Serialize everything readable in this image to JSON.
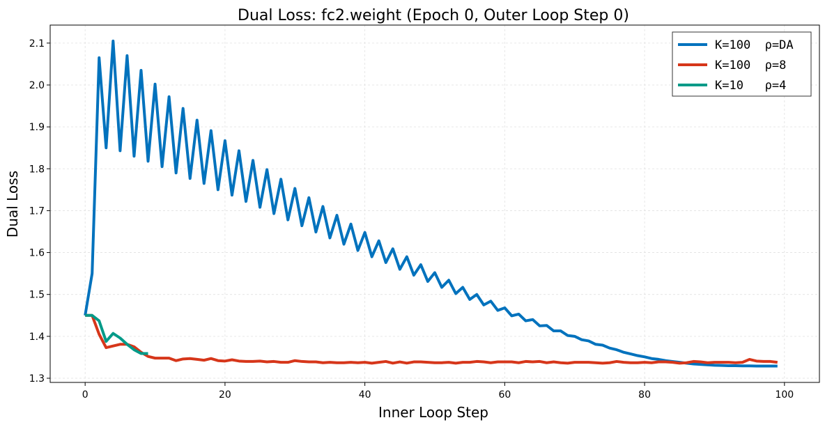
{
  "chart_data": {
    "type": "line",
    "title": "Dual Loss: fc2.weight (Epoch 0, Outer Loop Step 0)",
    "xlabel": "Inner Loop Step",
    "ylabel": "Dual Loss",
    "xlim": [
      -5,
      105
    ],
    "ylim": [
      1.29,
      2.143
    ],
    "xticks": [
      0,
      20,
      40,
      60,
      80,
      100
    ],
    "yticks": [
      1.3,
      1.4,
      1.5,
      1.6,
      1.7,
      1.8,
      1.9,
      2.0,
      2.1
    ],
    "grid": true,
    "legend_position": "top-right",
    "series": [
      {
        "name": "K=100  ρ=DA",
        "color": "#0072bd",
        "values": [
          1.45,
          1.55,
          2.065,
          1.85,
          2.105,
          1.843,
          2.07,
          1.83,
          2.035,
          1.818,
          2.002,
          1.805,
          1.972,
          1.79,
          1.944,
          1.777,
          1.916,
          1.765,
          1.891,
          1.75,
          1.867,
          1.737,
          1.843,
          1.722,
          1.82,
          1.708,
          1.798,
          1.693,
          1.775,
          1.678,
          1.753,
          1.664,
          1.731,
          1.649,
          1.71,
          1.635,
          1.689,
          1.62,
          1.668,
          1.605,
          1.648,
          1.59,
          1.628,
          1.576,
          1.609,
          1.56,
          1.59,
          1.546,
          1.571,
          1.531,
          1.552,
          1.517,
          1.534,
          1.502,
          1.517,
          1.488,
          1.5,
          1.475,
          1.484,
          1.462,
          1.468,
          1.449,
          1.453,
          1.437,
          1.44,
          1.425,
          1.426,
          1.413,
          1.413,
          1.402,
          1.4,
          1.392,
          1.389,
          1.381,
          1.379,
          1.372,
          1.368,
          1.362,
          1.358,
          1.354,
          1.351,
          1.347,
          1.345,
          1.342,
          1.34,
          1.338,
          1.336,
          1.334,
          1.333,
          1.332,
          1.331,
          1.3305,
          1.33,
          1.33,
          1.3295,
          1.3295,
          1.329,
          1.329,
          1.329,
          1.329
        ]
      },
      {
        "name": "K=100  ρ=8",
        "color": "#d6361a",
        "values": [
          1.45,
          1.45,
          1.405,
          1.373,
          1.377,
          1.381,
          1.381,
          1.375,
          1.362,
          1.352,
          1.348,
          1.348,
          1.348,
          1.342,
          1.346,
          1.347,
          1.345,
          1.343,
          1.347,
          1.342,
          1.341,
          1.344,
          1.341,
          1.34,
          1.34,
          1.341,
          1.339,
          1.34,
          1.338,
          1.338,
          1.342,
          1.34,
          1.339,
          1.339,
          1.337,
          1.338,
          1.337,
          1.337,
          1.338,
          1.337,
          1.338,
          1.336,
          1.338,
          1.34,
          1.336,
          1.339,
          1.336,
          1.339,
          1.339,
          1.338,
          1.337,
          1.337,
          1.338,
          1.336,
          1.338,
          1.338,
          1.34,
          1.339,
          1.337,
          1.339,
          1.339,
          1.339,
          1.337,
          1.34,
          1.339,
          1.34,
          1.337,
          1.339,
          1.337,
          1.336,
          1.338,
          1.338,
          1.338,
          1.337,
          1.336,
          1.337,
          1.34,
          1.338,
          1.337,
          1.337,
          1.338,
          1.337,
          1.339,
          1.339,
          1.338,
          1.336,
          1.337,
          1.34,
          1.339,
          1.337,
          1.338,
          1.338,
          1.338,
          1.337,
          1.338,
          1.345,
          1.341,
          1.34,
          1.34,
          1.338
        ]
      },
      {
        "name": "K=10   ρ=4",
        "color": "#009a88",
        "values": [
          1.45,
          1.45,
          1.437,
          1.388,
          1.407,
          1.396,
          1.381,
          1.368,
          1.359,
          1.359
        ]
      }
    ]
  }
}
